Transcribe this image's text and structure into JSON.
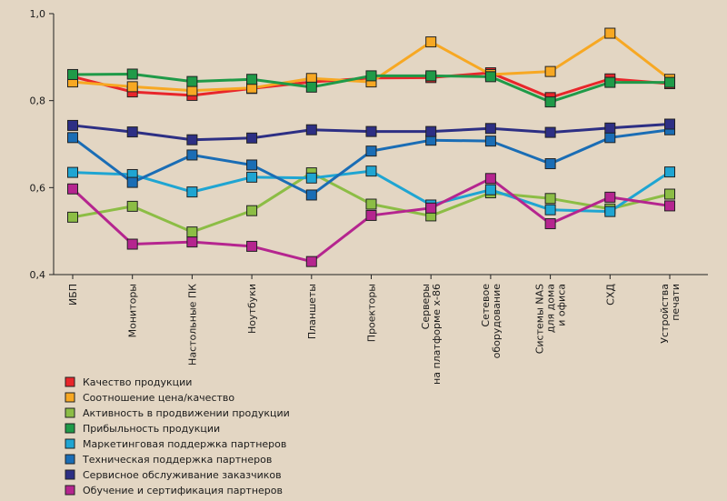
{
  "chart_data": {
    "type": "line",
    "ylim": [
      0.4,
      1.0
    ],
    "yticks": [
      "0,4",
      "0,6",
      "0,8",
      "1,0"
    ],
    "ytick_values": [
      0.4,
      0.6,
      0.8,
      1.0
    ],
    "grid": false,
    "legend_position": "bottom-left",
    "categories": [
      [
        "ИБП"
      ],
      [
        "Мониторы"
      ],
      [
        "Настольные ПК"
      ],
      [
        "Ноутбуки"
      ],
      [
        "Планшеты"
      ],
      [
        "Проекторы"
      ],
      [
        "Серверы",
        "на платформе x-86"
      ],
      [
        "Сетевое",
        "оборудование"
      ],
      [
        "Системы NAS",
        "для дома",
        "и офиса"
      ],
      [
        "СХД"
      ],
      [
        "Устройства",
        "печати"
      ]
    ],
    "series": [
      {
        "name": "Качество продукции",
        "color": "#e8262b",
        "values": [
          0.855,
          0.82,
          0.812,
          0.828,
          0.843,
          0.852,
          0.853,
          0.864,
          0.807,
          0.85,
          0.839
        ]
      },
      {
        "name": "Соотношение цена/качество",
        "color": "#f7a823",
        "values": [
          0.843,
          0.832,
          0.823,
          0.829,
          0.851,
          0.843,
          0.935,
          0.86,
          0.867,
          0.955,
          0.849
        ]
      },
      {
        "name": "Активность в продвижении продукции",
        "color": "#8cbd45",
        "values": [
          0.532,
          0.557,
          0.498,
          0.547,
          0.634,
          0.562,
          0.535,
          0.588,
          0.575,
          0.551,
          0.585
        ]
      },
      {
        "name": "Прибыльность продукции",
        "color": "#1f9a48",
        "values": [
          0.86,
          0.861,
          0.844,
          0.849,
          0.831,
          0.857,
          0.857,
          0.855,
          0.797,
          0.842,
          0.842
        ]
      },
      {
        "name": "Маркетинговая поддержка партнеров",
        "color": "#1fa5d2",
        "values": [
          0.635,
          0.63,
          0.59,
          0.624,
          0.622,
          0.638,
          0.56,
          0.595,
          0.549,
          0.545,
          0.636
        ]
      },
      {
        "name": "Техническая поддержка партнеров",
        "color": "#1a6db5",
        "values": [
          0.715,
          0.612,
          0.675,
          0.652,
          0.583,
          0.684,
          0.709,
          0.707,
          0.655,
          0.715,
          0.733
        ]
      },
      {
        "name": "Сервисное обслуживание заказчиков",
        "color": "#2d2f84",
        "values": [
          0.743,
          0.728,
          0.71,
          0.714,
          0.733,
          0.729,
          0.729,
          0.736,
          0.727,
          0.737,
          0.746
        ]
      },
      {
        "name": "Обучение и сертификация партнеров",
        "color": "#b5258f",
        "values": [
          0.597,
          0.47,
          0.475,
          0.465,
          0.43,
          0.536,
          0.553,
          0.621,
          0.517,
          0.578,
          0.558
        ]
      }
    ]
  }
}
